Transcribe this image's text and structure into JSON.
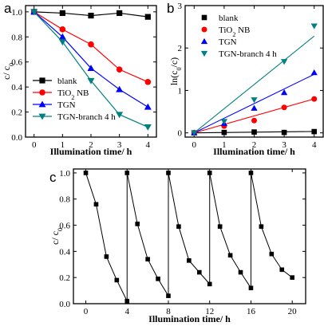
{
  "chart_data": [
    {
      "panel": "a",
      "type": "line",
      "xlabel": "Illumination time/ h",
      "ylabel": "c/ c0",
      "xlim": [
        -0.3,
        4.3
      ],
      "ylim": [
        0,
        1.05
      ],
      "xticks": [
        0,
        1,
        2,
        3,
        4
      ],
      "yticks": [
        0.0,
        0.2,
        0.4,
        0.6,
        0.8,
        1.0
      ],
      "legend_position": "bottom-left",
      "x": [
        0,
        1,
        2,
        3,
        4
      ],
      "series": [
        {
          "name": "blank",
          "color": "#000000",
          "marker": "square",
          "values": [
            1.0,
            0.99,
            0.97,
            0.99,
            0.96
          ]
        },
        {
          "name": "TiO2 NB",
          "color": "#ff0000",
          "marker": "circle",
          "values": [
            1.0,
            0.86,
            0.74,
            0.54,
            0.44
          ]
        },
        {
          "name": "TGN",
          "color": "#0000ff",
          "marker": "triangle-up",
          "values": [
            1.0,
            0.8,
            0.55,
            0.38,
            0.24
          ]
        },
        {
          "name": "TGN-branch 4 h",
          "color": "#008080",
          "marker": "triangle-down",
          "values": [
            1.0,
            0.76,
            0.45,
            0.18,
            0.08
          ]
        }
      ]
    },
    {
      "panel": "b",
      "type": "scatter",
      "xlabel": "Illumination time/ h",
      "ylabel": "ln(c0/c)",
      "xlim": [
        -0.3,
        4.3
      ],
      "ylim": [
        -0.1,
        3.0
      ],
      "xticks": [
        0,
        1,
        2,
        3,
        4
      ],
      "yticks": [
        0,
        1,
        2,
        3
      ],
      "legend_position": "top-left",
      "fit_lines": true,
      "x": [
        0,
        1,
        2,
        3,
        4
      ],
      "series": [
        {
          "name": "blank",
          "color": "#000000",
          "marker": "square",
          "values": [
            0.0,
            0.01,
            0.02,
            0.01,
            0.03
          ],
          "slope": 0.008
        },
        {
          "name": "TiO2 NB",
          "color": "#ff0000",
          "marker": "circle",
          "values": [
            0.0,
            0.16,
            0.29,
            0.6,
            0.8
          ],
          "slope": 0.2
        },
        {
          "name": "TGN",
          "color": "#0000ff",
          "marker": "triangle-up",
          "values": [
            0.0,
            0.22,
            0.58,
            0.95,
            1.42
          ],
          "slope": 0.345
        },
        {
          "name": "TGN-branch 4 h",
          "color": "#008080",
          "marker": "triangle-down",
          "values": [
            0.0,
            0.27,
            0.78,
            1.68,
            2.52
          ],
          "slope": 0.57
        }
      ]
    },
    {
      "panel": "c",
      "type": "line",
      "xlabel": "Illumination time/ h",
      "ylabel": "c/ c0",
      "xlim": [
        -1.2,
        21.3
      ],
      "ylim": [
        0,
        1.03
      ],
      "xticks": [
        0,
        4,
        8,
        12,
        16,
        20
      ],
      "yticks": [
        0.0,
        0.2,
        0.4,
        0.6,
        0.8,
        1.0
      ],
      "cycles": [
        {
          "x": [
            0,
            1,
            2,
            3,
            4
          ],
          "values": [
            1.0,
            0.76,
            0.36,
            0.18,
            0.02
          ]
        },
        {
          "x": [
            4,
            5,
            6,
            7,
            8
          ],
          "values": [
            1.0,
            0.61,
            0.34,
            0.19,
            0.06
          ]
        },
        {
          "x": [
            8,
            9,
            10,
            11,
            12
          ],
          "values": [
            1.0,
            0.59,
            0.33,
            0.24,
            0.15
          ]
        },
        {
          "x": [
            12,
            13,
            14,
            15,
            16
          ],
          "values": [
            1.0,
            0.59,
            0.37,
            0.24,
            0.12
          ]
        },
        {
          "x": [
            16,
            17,
            18,
            19,
            20
          ],
          "values": [
            1.0,
            0.59,
            0.38,
            0.26,
            0.2
          ]
        }
      ]
    }
  ]
}
